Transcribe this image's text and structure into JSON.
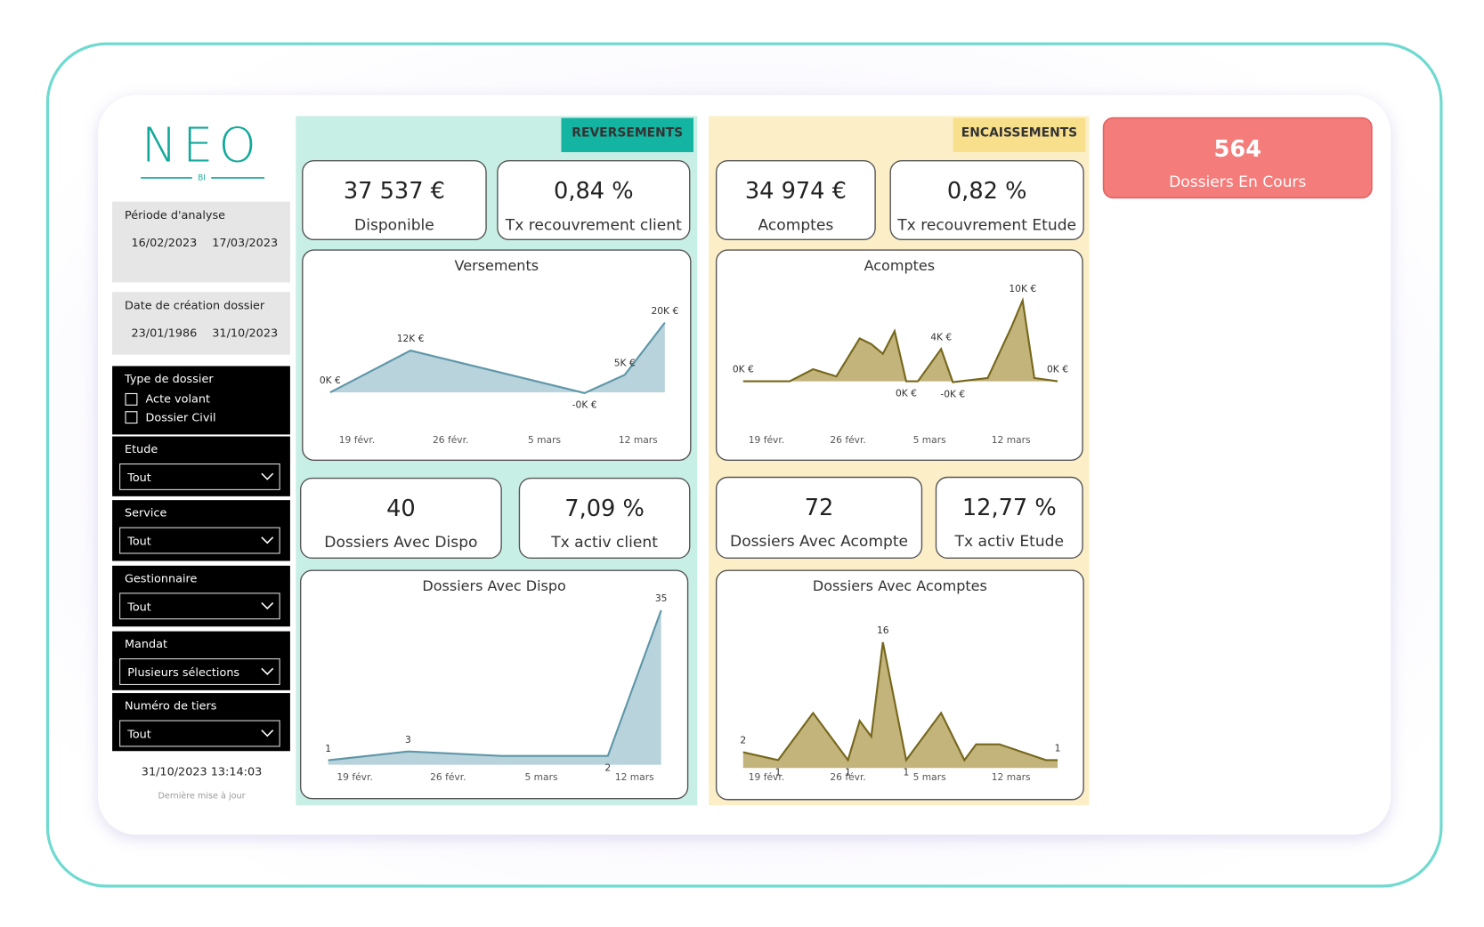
{
  "logo": {
    "title": "NEO",
    "subtitle": "BI"
  },
  "filters": {
    "period": {
      "label": "Période d'analyse",
      "start": "16/02/2023",
      "end": "17/03/2023"
    },
    "creation": {
      "label": "Date de création dossier",
      "start": "23/01/1986",
      "end": "31/10/2023"
    },
    "type": {
      "label": "Type de dossier",
      "options": [
        "Acte volant",
        "Dossier Civil"
      ]
    },
    "dropdowns": [
      {
        "label": "Etude",
        "value": "Tout"
      },
      {
        "label": "Service",
        "value": "Tout"
      },
      {
        "label": "Gestionnaire",
        "value": "Tout"
      },
      {
        "label": "Mandat",
        "value": "Plusieurs sélections"
      },
      {
        "label": "Numéro de tiers",
        "value": "Tout"
      }
    ],
    "updated": "31/10/2023 13:14:03",
    "updated_label": "Dernière mise à jour"
  },
  "sections": [
    {
      "title": "REVERSEMENTS",
      "color": "#c8efe6",
      "header_color": "#14b4a2",
      "kpis": [
        {
          "value": "37 537 €",
          "label": "Disponible"
        },
        {
          "value": "0,84 %",
          "label": "Tx recouvrement client"
        },
        {
          "value": "40",
          "label": "Dossiers Avec Dispo"
        },
        {
          "value": "7,09 %",
          "label": "Tx activ client"
        }
      ],
      "charts": [
        {
          "type": "area",
          "title": "Versements",
          "fill": "#b9d3dd",
          "stroke": "#5e97a8",
          "xlim": [
            0,
            27
          ],
          "ylim": [
            -2,
            25
          ],
          "xticks": [
            {
              "value": 3,
              "label": "19 févr."
            },
            {
              "value": 10,
              "label": "26 févr."
            },
            {
              "value": 17,
              "label": "5 mars"
            },
            {
              "value": 24,
              "label": "12 mars"
            }
          ],
          "x": [
            1,
            7,
            20,
            23,
            26
          ],
          "values": [
            0,
            12,
            -0.2,
            5,
            20
          ],
          "value_labels": [
            "0K €",
            "12K €",
            "-0K €",
            "5K €",
            "20K €"
          ]
        },
        {
          "type": "area",
          "title": "Dossiers Avec Dispo",
          "fill": "#b9d3dd",
          "stroke": "#5e97a8",
          "xlim": [
            0,
            27
          ],
          "ylim": [
            -1,
            38
          ],
          "xticks": [
            {
              "value": 3,
              "label": "19 févr."
            },
            {
              "value": 10,
              "label": "26 févr."
            },
            {
              "value": 17,
              "label": "5 mars"
            },
            {
              "value": 24,
              "label": "12 mars"
            }
          ],
          "x": [
            1,
            7,
            14,
            22,
            26
          ],
          "values": [
            1,
            3,
            2,
            2,
            35
          ],
          "value_labels": [
            "1",
            "3",
            null,
            "2",
            "35"
          ]
        }
      ]
    },
    {
      "title": "ENCAISSEMENTS",
      "color": "#fcefc8",
      "header_color": "#f8df8c",
      "kpis": [
        {
          "value": "34 974 €",
          "label": "Acomptes"
        },
        {
          "value": "0,82 %",
          "label": "Tx recouvrement Etude"
        },
        {
          "value": "72",
          "label": "Dossiers Avec Acompte"
        },
        {
          "value": "12,77 %",
          "label": "Tx activ Etude"
        }
      ],
      "charts": [
        {
          "type": "area",
          "title": "Acomptes",
          "fill": "#c3b47c",
          "stroke": "#76671c",
          "xlim": [
            0,
            29
          ],
          "ylim": [
            -2,
            12
          ],
          "xticks": [
            {
              "value": 3,
              "label": "19 févr."
            },
            {
              "value": 10,
              "label": "26 févr."
            },
            {
              "value": 17,
              "label": "5 mars"
            },
            {
              "value": 24,
              "label": "12 mars"
            }
          ],
          "x": [
            1,
            5,
            7,
            9,
            11,
            12,
            13,
            14,
            15,
            16,
            18,
            19,
            22,
            24,
            25,
            26,
            28
          ],
          "values": [
            0,
            0,
            1.5,
            0.6,
            5.3,
            4.6,
            3.4,
            6.2,
            0,
            0,
            4,
            -0.1,
            0.4,
            6.6,
            10,
            0.4,
            0
          ],
          "value_labels": [
            "0K €",
            null,
            null,
            null,
            null,
            null,
            null,
            null,
            "0K €",
            null,
            "4K €",
            "-0K €",
            null,
            null,
            "10K €",
            null,
            "0K €"
          ]
        },
        {
          "type": "area",
          "title": "Dossiers Avec Acomptes",
          "fill": "#c3b47c",
          "stroke": "#76671c",
          "xlim": [
            0,
            29
          ],
          "ylim": [
            -1,
            18
          ],
          "xticks": [
            {
              "value": 3,
              "label": "19 févr."
            },
            {
              "value": 10,
              "label": "26 févr."
            },
            {
              "value": 17,
              "label": "5 mars"
            },
            {
              "value": 24,
              "label": "12 mars"
            }
          ],
          "x": [
            1,
            4,
            7,
            10,
            11,
            12,
            13,
            15,
            18,
            20,
            21,
            23,
            25,
            27,
            28
          ],
          "values": [
            2,
            1,
            7,
            1,
            6,
            4,
            16,
            1,
            7,
            1,
            3,
            3,
            2,
            1,
            1
          ],
          "value_labels": [
            "2",
            "1",
            null,
            "1",
            null,
            null,
            "16",
            "1",
            null,
            null,
            null,
            null,
            null,
            null,
            "1"
          ]
        }
      ]
    }
  ],
  "summary": {
    "value": "564",
    "label": "Dossiers En Cours",
    "color": "#f47c7a"
  }
}
